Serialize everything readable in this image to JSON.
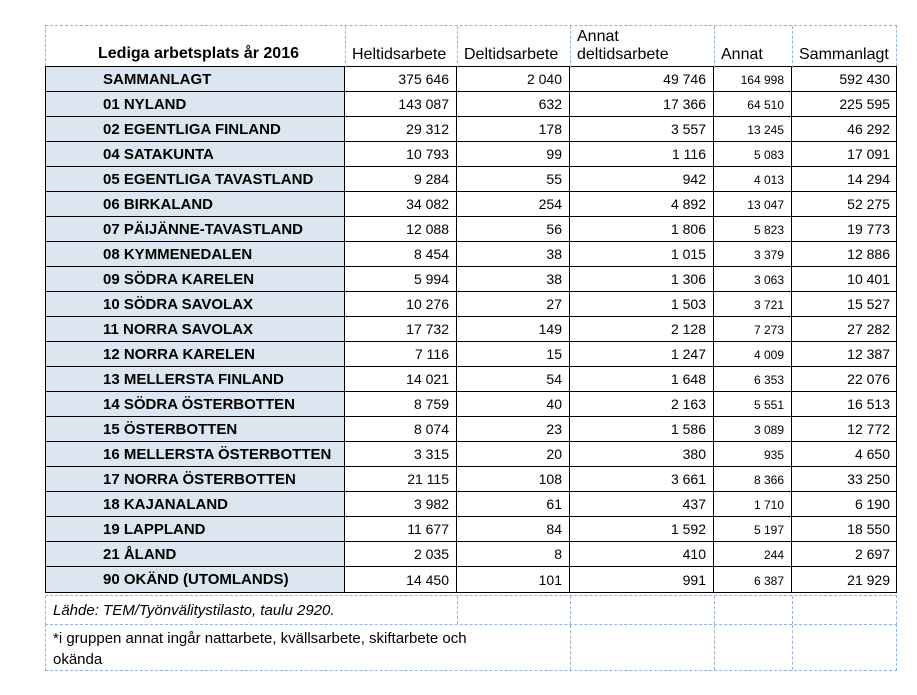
{
  "table": {
    "title": "Lediga arbetsplats år 2016",
    "columns": [
      "Heltidsarbete",
      "Deltidsarbete",
      "Annat deltidsarbete",
      "Annat",
      "Sammanlagt"
    ],
    "rows": [
      {
        "label": "SAMMANLAGT",
        "heltidsarbete": "375 646",
        "deltidsarbete": "2 040",
        "annat_deltidsarbete": "49 746",
        "annat": "164 998",
        "sammanlagt": "592 430"
      },
      {
        "label": "01 NYLAND",
        "heltidsarbete": "143 087",
        "deltidsarbete": "632",
        "annat_deltidsarbete": "17 366",
        "annat": "64 510",
        "sammanlagt": "225 595"
      },
      {
        "label": "02 EGENTLIGA FINLAND",
        "heltidsarbete": "29 312",
        "deltidsarbete": "178",
        "annat_deltidsarbete": "3 557",
        "annat": "13 245",
        "sammanlagt": "46 292"
      },
      {
        "label": "04 SATAKUNTA",
        "heltidsarbete": "10 793",
        "deltidsarbete": "99",
        "annat_deltidsarbete": "1 116",
        "annat": "5 083",
        "sammanlagt": "17 091"
      },
      {
        "label": "05 EGENTLIGA TAVASTLAND",
        "heltidsarbete": "9 284",
        "deltidsarbete": "55",
        "annat_deltidsarbete": "942",
        "annat": "4 013",
        "sammanlagt": "14 294"
      },
      {
        "label": "06 BIRKALAND",
        "heltidsarbete": "34 082",
        "deltidsarbete": "254",
        "annat_deltidsarbete": "4 892",
        "annat": "13 047",
        "sammanlagt": "52 275"
      },
      {
        "label": "07 PÄIJÄNNE-TAVASTLAND",
        "heltidsarbete": "12 088",
        "deltidsarbete": "56",
        "annat_deltidsarbete": "1 806",
        "annat": "5 823",
        "sammanlagt": "19 773"
      },
      {
        "label": "08 KYMMENEDALEN",
        "heltidsarbete": "8 454",
        "deltidsarbete": "38",
        "annat_deltidsarbete": "1 015",
        "annat": "3 379",
        "sammanlagt": "12 886"
      },
      {
        "label": "09 SÖDRA KARELEN",
        "heltidsarbete": "5 994",
        "deltidsarbete": "38",
        "annat_deltidsarbete": "1 306",
        "annat": "3 063",
        "sammanlagt": "10 401"
      },
      {
        "label": "10 SÖDRA SAVOLAX",
        "heltidsarbete": "10 276",
        "deltidsarbete": "27",
        "annat_deltidsarbete": "1 503",
        "annat": "3 721",
        "sammanlagt": "15 527"
      },
      {
        "label": "11 NORRA SAVOLAX",
        "heltidsarbete": "17 732",
        "deltidsarbete": "149",
        "annat_deltidsarbete": "2 128",
        "annat": "7 273",
        "sammanlagt": "27 282"
      },
      {
        "label": "12 NORRA KARELEN",
        "heltidsarbete": "7 116",
        "deltidsarbete": "15",
        "annat_deltidsarbete": "1 247",
        "annat": "4 009",
        "sammanlagt": "12 387"
      },
      {
        "label": "13 MELLERSTA FINLAND",
        "heltidsarbete": "14 021",
        "deltidsarbete": "54",
        "annat_deltidsarbete": "1 648",
        "annat": "6 353",
        "sammanlagt": "22 076"
      },
      {
        "label": "14 SÖDRA ÖSTERBOTTEN",
        "heltidsarbete": "8 759",
        "deltidsarbete": "40",
        "annat_deltidsarbete": "2 163",
        "annat": "5 551",
        "sammanlagt": "16 513"
      },
      {
        "label": "15 ÖSTERBOTTEN",
        "heltidsarbete": "8 074",
        "deltidsarbete": "23",
        "annat_deltidsarbete": "1 586",
        "annat": "3 089",
        "sammanlagt": "12 772"
      },
      {
        "label": "16 MELLERSTA ÖSTERBOTTEN",
        "heltidsarbete": "3 315",
        "deltidsarbete": "20",
        "annat_deltidsarbete": "380",
        "annat": "935",
        "sammanlagt": "4 650"
      },
      {
        "label": "17 NORRA ÖSTERBOTTEN",
        "heltidsarbete": "21 115",
        "deltidsarbete": "108",
        "annat_deltidsarbete": "3 661",
        "annat": "8 366",
        "sammanlagt": "33 250"
      },
      {
        "label": "18 KAJANALAND",
        "heltidsarbete": "3 982",
        "deltidsarbete": "61",
        "annat_deltidsarbete": "437",
        "annat": "1 710",
        "sammanlagt": "6 190"
      },
      {
        "label": "19 LAPPLAND",
        "heltidsarbete": "11 677",
        "deltidsarbete": "84",
        "annat_deltidsarbete": "1 592",
        "annat": "5 197",
        "sammanlagt": "18 550"
      },
      {
        "label": "21 ÅLAND",
        "heltidsarbete": "2 035",
        "deltidsarbete": "8",
        "annat_deltidsarbete": "410",
        "annat": "244",
        "sammanlagt": "2 697"
      },
      {
        "label": "90 OKÄND (UTOMLANDS)",
        "heltidsarbete": "14 450",
        "deltidsarbete": "101",
        "annat_deltidsarbete": "991",
        "annat": "6 387",
        "sammanlagt": "21 929"
      }
    ]
  },
  "footer": {
    "source": "Lähde: TEM/Työnvälitystilasto,  taulu 2920.",
    "note": "*i gruppen annat ingår nattarbete, kvällsarbete, skiftarbete och okända"
  },
  "colors": {
    "label_bg": "#dce6f1",
    "dash": "#95b3d7",
    "line": "#000000",
    "text": "#000000",
    "page_bg": "#ffffff"
  }
}
